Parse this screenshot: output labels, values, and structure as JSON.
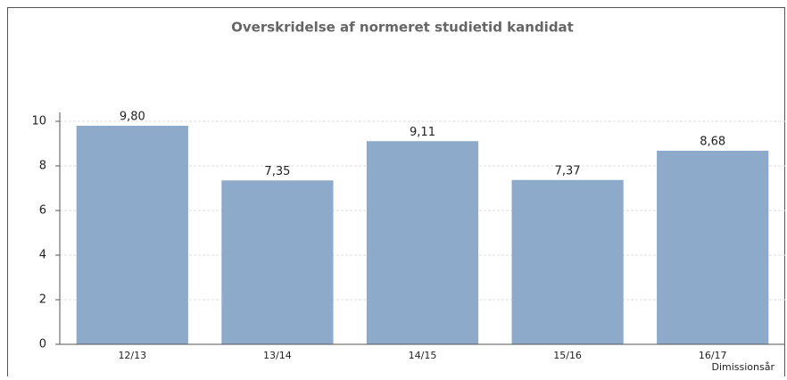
{
  "chart_data": {
    "type": "bar",
    "title": "Overskridelse af normeret studietid kandidat",
    "categories": [
      "12/13",
      "13/14",
      "14/15",
      "15/16",
      "16/17"
    ],
    "values": [
      9.8,
      7.35,
      9.11,
      7.37,
      8.68
    ],
    "value_labels": [
      "9,80",
      "7,35",
      "9,11",
      "7,37",
      "8,68"
    ],
    "color": "#8eaacb",
    "xlabel": "Dimissionsår",
    "ylim": [
      0,
      10
    ],
    "yticks": [
      0,
      2,
      4,
      6,
      8,
      10
    ],
    "grid": true
  }
}
